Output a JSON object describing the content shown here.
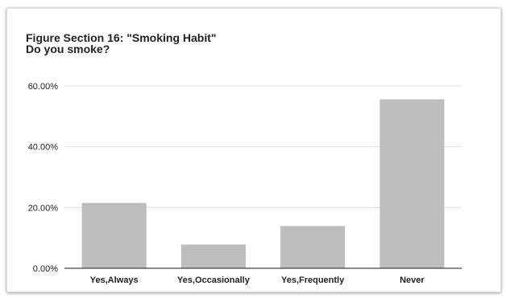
{
  "chart_data": {
    "type": "bar",
    "title": "Figure Section 16: \"Smoking Habit\"",
    "subtitle": "Do you smoke?",
    "categories": [
      "Yes,Always",
      "Yes,Occasionally",
      "Yes,Frequently",
      "Never"
    ],
    "values": [
      21.5,
      7.8,
      13.9,
      55.6
    ],
    "yticks": [
      0,
      20,
      40,
      60
    ],
    "ytick_labels": [
      "0.00%",
      "20.00%",
      "40.00%",
      "60.00%"
    ],
    "ylim": [
      0,
      60
    ],
    "grid": true,
    "legend": "none",
    "bar_color": "#bdbdbd",
    "grid_color": "#e0e0e0",
    "axis_color": "#444444",
    "text_color": "#222222"
  }
}
